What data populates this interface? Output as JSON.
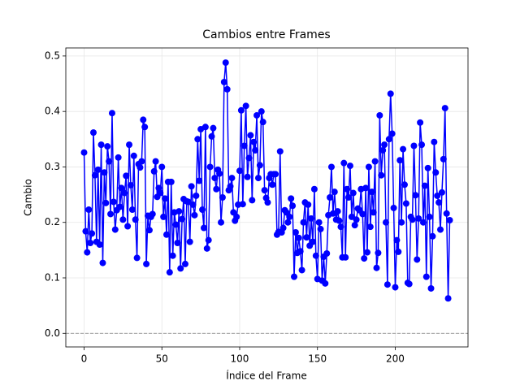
{
  "chart_data": {
    "type": "line",
    "title": "Cambios entre Frames",
    "xlabel": "Índice del Frame",
    "ylabel": "Cambio",
    "color": "#0000ff",
    "grid": true,
    "reference_line": 0,
    "xlim": [
      -11.75,
      246.75
    ],
    "xticks": [
      0,
      50,
      100,
      150,
      200
    ],
    "ylim": [
      -0.0245,
      0.5145
    ],
    "yticks": [
      {
        "value": 0,
        "label": "0.0"
      },
      0.1,
      0.2,
      0.3,
      0.4,
      0.5
    ],
    "values": [
      0.326,
      0.184,
      0.146,
      0.223,
      0.163,
      0.18,
      0.362,
      0.285,
      0.165,
      0.295,
      0.16,
      0.34,
      0.127,
      0.29,
      0.235,
      0.337,
      0.31,
      0.215,
      0.397,
      0.237,
      0.187,
      0.222,
      0.317,
      0.228,
      0.262,
      0.205,
      0.253,
      0.284,
      0.193,
      0.34,
      0.267,
      0.223,
      0.32,
      0.205,
      0.136,
      0.305,
      0.299,
      0.31,
      0.385,
      0.372,
      0.125,
      0.212,
      0.186,
      0.21,
      0.215,
      0.292,
      0.31,
      0.246,
      0.262,
      0.253,
      0.3,
      0.21,
      0.243,
      0.178,
      0.273,
      0.11,
      0.273,
      0.14,
      0.218,
      0.196,
      0.163,
      0.22,
      0.117,
      0.206,
      0.242,
      0.125,
      0.238,
      0.237,
      0.165,
      0.265,
      0.232,
      0.213,
      0.248,
      0.35,
      0.275,
      0.368,
      0.223,
      0.19,
      0.372,
      0.153,
      0.168,
      0.3,
      0.355,
      0.37,
      0.28,
      0.26,
      0.295,
      0.288,
      0.2,
      0.245,
      0.453,
      0.488,
      0.44,
      0.258,
      0.265,
      0.28,
      0.218,
      0.203,
      0.21,
      0.232,
      0.293,
      0.402,
      0.233,
      0.338,
      0.41,
      0.282,
      0.316,
      0.357,
      0.24,
      0.345,
      0.33,
      0.393,
      0.28,
      0.303,
      0.4,
      0.381,
      0.258,
      0.244,
      0.236,
      0.28,
      0.287,
      0.268,
      0.287,
      0.287,
      0.178,
      0.183,
      0.328,
      0.182,
      0.19,
      0.222,
      0.218,
      0.2,
      0.21,
      0.243,
      0.23,
      0.102,
      0.182,
      0.145,
      0.172,
      0.148,
      0.114,
      0.2,
      0.236,
      0.173,
      0.232,
      0.158,
      0.207,
      0.165,
      0.26,
      0.14,
      0.098,
      0.2,
      0.188,
      0.095,
      0.138,
      0.09,
      0.144,
      0.213,
      0.245,
      0.3,
      0.216,
      0.255,
      0.205,
      0.22,
      0.203,
      0.192,
      0.137,
      0.307,
      0.137,
      0.26,
      0.245,
      0.302,
      0.21,
      0.253,
      0.195,
      0.205,
      0.225,
      0.222,
      0.26,
      0.215,
      0.135,
      0.262,
      0.146,
      0.3,
      0.192,
      0.255,
      0.218,
      0.31,
      0.118,
      0.145,
      0.393,
      0.285,
      0.33,
      0.34,
      0.2,
      0.088,
      0.35,
      0.432,
      0.36,
      0.226,
      0.083,
      0.168,
      0.147,
      0.312,
      0.2,
      0.332,
      0.268,
      0.234,
      0.091,
      0.089,
      0.21,
      0.205,
      0.338,
      0.249,
      0.133,
      0.207,
      0.38,
      0.34,
      0.2,
      0.266,
      0.102,
      0.298,
      0.21,
      0.081,
      0.175,
      0.345,
      0.29,
      0.248,
      0.236,
      0.187,
      0.254,
      0.314,
      0.406,
      0.216,
      0.063,
      0.204
    ]
  }
}
